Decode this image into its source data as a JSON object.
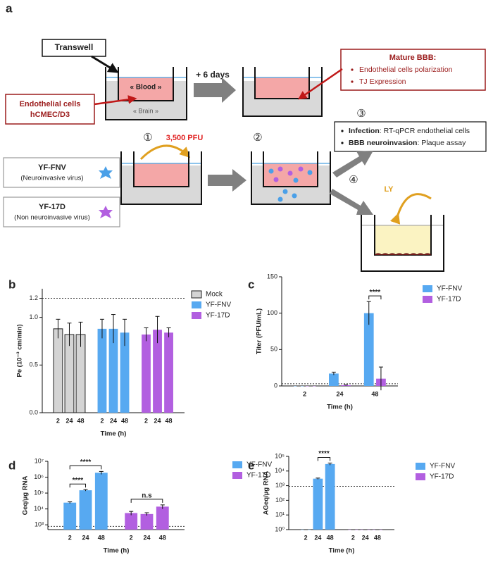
{
  "figure_a": {
    "panel": "a",
    "transwell": "Transwell",
    "blood": "« Blood »",
    "brain": "« Brain »",
    "cells": [
      "Endothelial cells",
      "hCMEC/D3"
    ],
    "days": "+ 6 days",
    "mature_title": "Mature BBB:",
    "mature_items": [
      "Endothelial cells polarization",
      "TJ Expression"
    ],
    "steps": [
      "①",
      "②",
      "③",
      "④"
    ],
    "dose": "3,500 PFU",
    "virus1": [
      "YF-FNV",
      "(Neuroinvasive virus)"
    ],
    "virus2": [
      "YF-17D",
      "(Non neuroinvasive virus)"
    ],
    "readouts": [
      {
        "bold": "Infection",
        "text": ": RT-qPCR endothelial cells"
      },
      {
        "bold": "BBB neuroinvasion",
        "text": ": Plaque assay"
      }
    ],
    "ly": "LY"
  },
  "chart_data": [
    {
      "panel": "b",
      "type": "bar",
      "ylabel": "Pe (10⁻³ cm/min)",
      "xlabel": "Time (h)",
      "categories": [
        "2",
        "24",
        "48"
      ],
      "series": [
        {
          "name": "Mock",
          "color": "#d4d4d4",
          "edgecolor": "#222222",
          "values": [
            0.88,
            0.82,
            0.82
          ],
          "errors": [
            0.1,
            0.12,
            0.13
          ]
        },
        {
          "name": "YF-FNV",
          "color": "#57a9f1",
          "values": [
            0.88,
            0.88,
            0.84
          ],
          "errors": [
            0.1,
            0.15,
            0.14
          ]
        },
        {
          "name": "YF-17D",
          "color": "#b25fe0",
          "values": [
            0.82,
            0.87,
            0.84
          ],
          "errors": [
            0.07,
            0.14,
            0.05
          ]
        }
      ],
      "ylim": [
        0,
        1.3
      ],
      "yticks": [
        {
          "value": 0,
          "label": "0.0"
        },
        0.5,
        {
          "value": 1,
          "label": "1.0"
        },
        1.2
      ],
      "reference_line": 1.2
    },
    {
      "panel": "c",
      "type": "bar",
      "ylabel": "Titer (PFU/mL)",
      "xlabel": "Time (h)",
      "categories": [
        "2",
        "24",
        "48"
      ],
      "series": [
        {
          "name": "YF-FNV",
          "color": "#57a9f1",
          "values": [
            0,
            17,
            100
          ],
          "errors": [
            0,
            2,
            16
          ]
        },
        {
          "name": "YF-17D",
          "color": "#b25fe0",
          "values": [
            0,
            1,
            10
          ],
          "errors": [
            0,
            0.5,
            16
          ]
        }
      ],
      "ylim": [
        0,
        150
      ],
      "yticks": [
        0,
        50,
        100,
        150
      ],
      "reference_line": 3,
      "annotations": [
        "****"
      ]
    },
    {
      "panel": "d",
      "type": "bar",
      "ylabel": "Geq/µg RNA",
      "xlabel": "Time (h)",
      "yscale": "log",
      "categories": [
        "2",
        "24",
        "48"
      ],
      "series": [
        {
          "name": "YF-FNV",
          "color": "#57a9f1",
          "values": [
            25000,
            150000,
            1900000
          ],
          "errors": [
            3000,
            15000,
            400000
          ]
        },
        {
          "name": "YF-17D",
          "color": "#b25fe0",
          "values": [
            5500,
            4800,
            14000
          ],
          "errors": [
            1500,
            1000,
            4000
          ]
        }
      ],
      "ylim": [
        500,
        10000000
      ],
      "yticks": [
        {
          "value": 1000,
          "label": "10³"
        },
        {
          "value": 10000,
          "label": "10⁴"
        },
        {
          "value": 100000,
          "label": "10⁵"
        },
        {
          "value": 1000000,
          "label": "10⁶"
        },
        {
          "value": 10000000,
          "label": "10⁷"
        }
      ],
      "reference_line": 800,
      "annotations": [
        "****",
        "****",
        "n.s"
      ]
    },
    {
      "panel": "e",
      "type": "bar",
      "ylabel": "AGeq/µg RNA",
      "xlabel": "Time (h)",
      "yscale": "log",
      "categories": [
        "2",
        "24",
        "48"
      ],
      "series": [
        {
          "name": "YF-FNV",
          "color": "#57a9f1",
          "values": [
            1,
            3000,
            30000
          ],
          "errors": [
            0,
            300,
            5000
          ]
        },
        {
          "name": "YF-17D",
          "color": "#b25fe0",
          "values": [
            1,
            1,
            1
          ],
          "errors": [
            0,
            0,
            0
          ]
        }
      ],
      "ylim": [
        1,
        100000
      ],
      "yticks": [
        {
          "value": 1,
          "label": "10⁰"
        },
        {
          "value": 10,
          "label": "10¹"
        },
        {
          "value": 100,
          "label": "10²"
        },
        {
          "value": 1000,
          "label": "10³"
        },
        {
          "value": 10000,
          "label": "10⁴"
        },
        {
          "value": 100000,
          "label": "10⁵"
        }
      ],
      "reference_line": 900,
      "annotations": [
        "****"
      ]
    }
  ]
}
